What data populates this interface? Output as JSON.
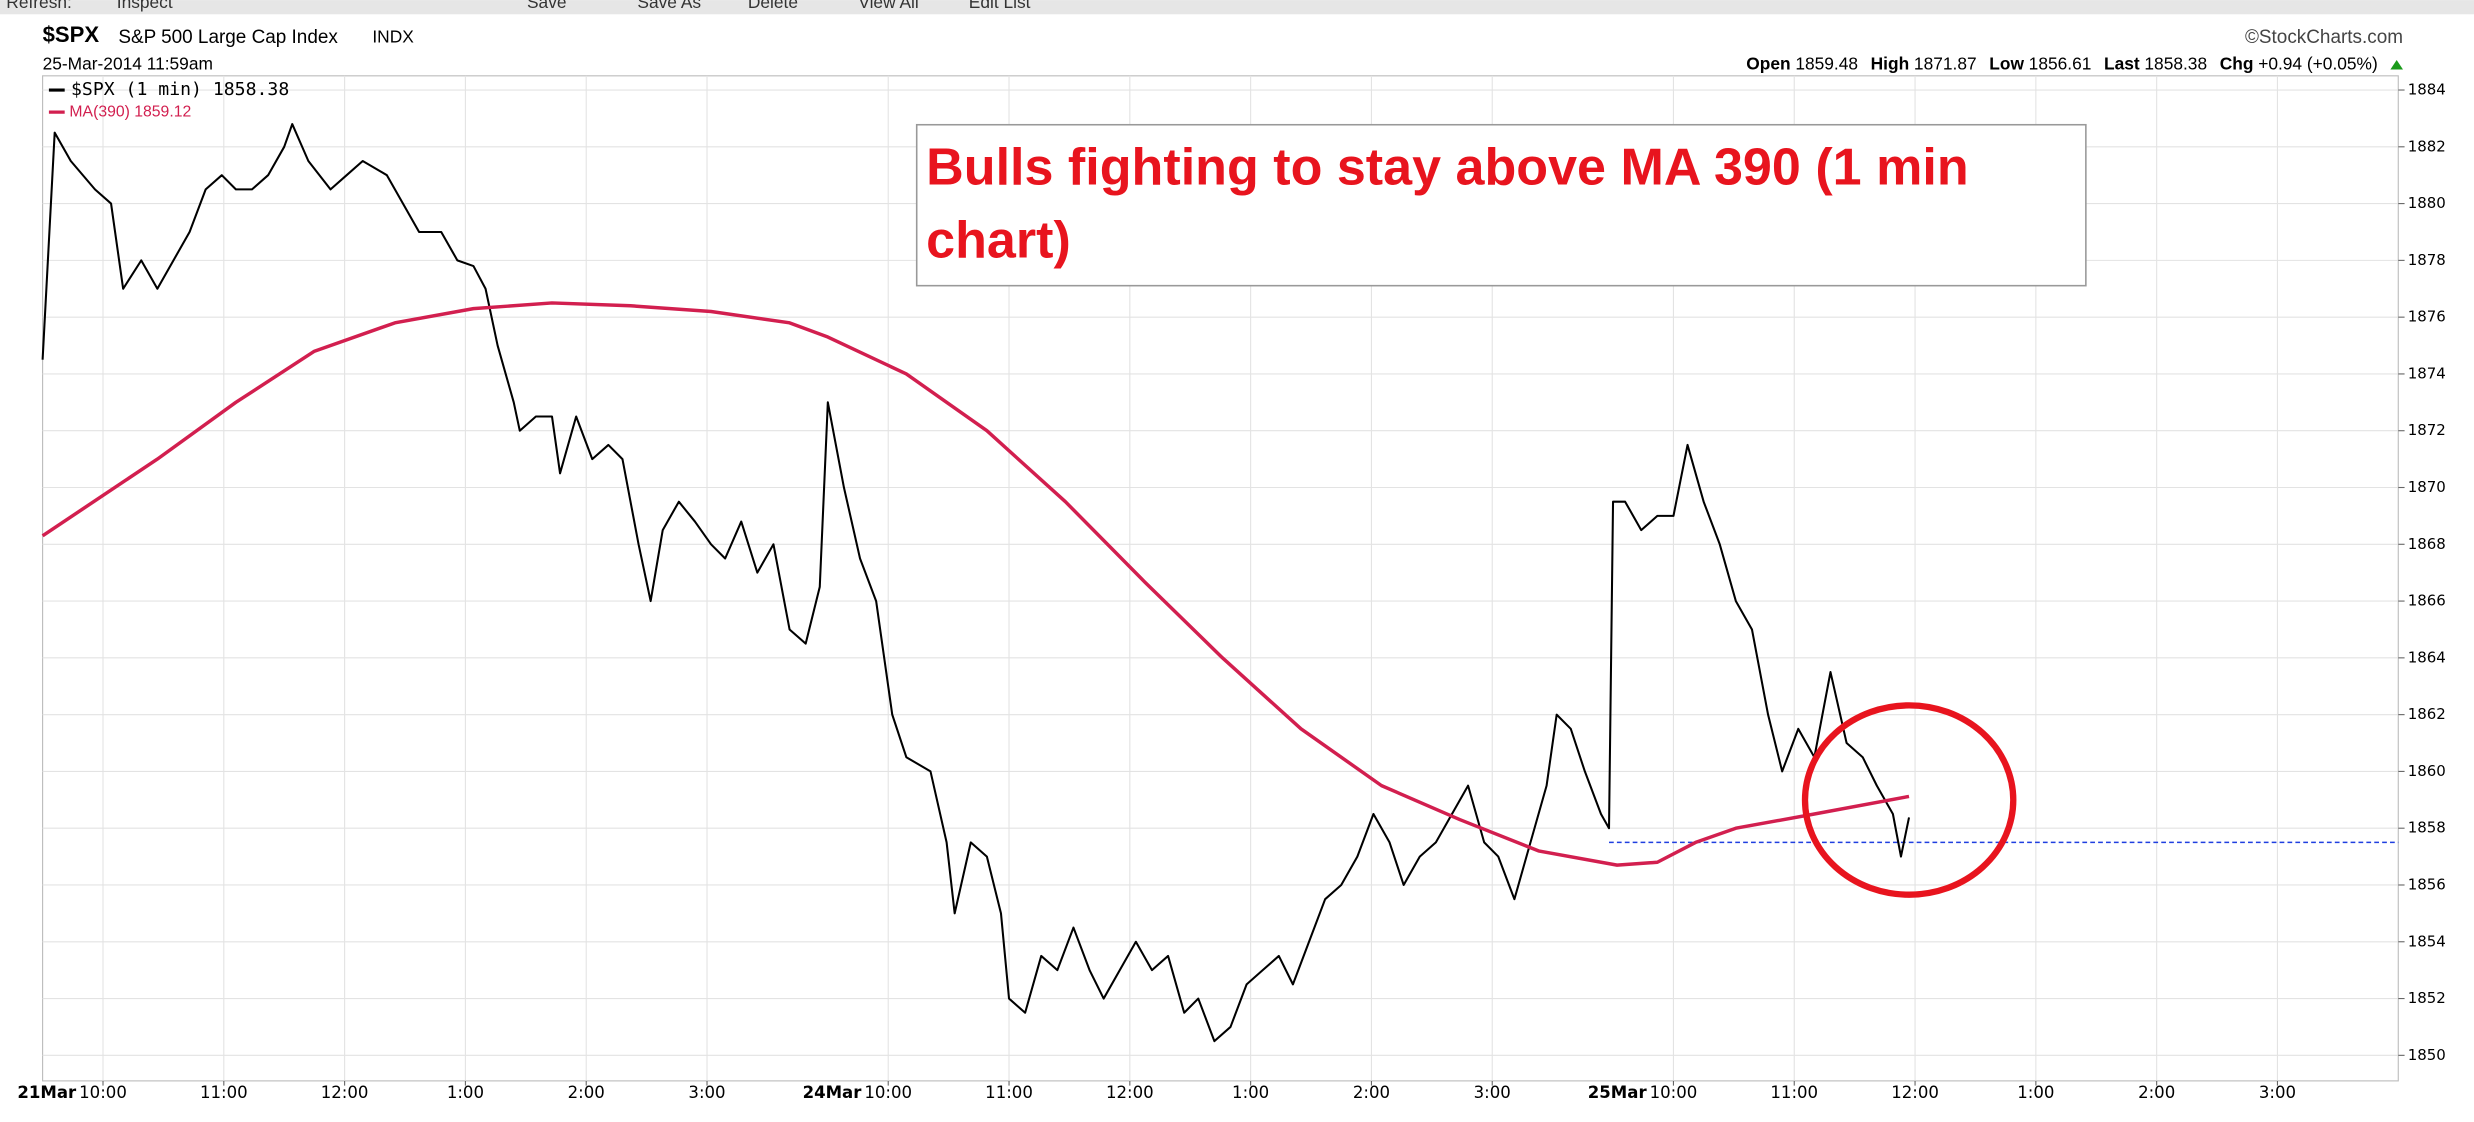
{
  "toolbar": [
    "Refresh:",
    "Inspect",
    "Save",
    "Save As",
    "Delete",
    "View All",
    "Edit List"
  ],
  "header": {
    "symbol": "$SPX",
    "name": "S&P 500 Large Cap Index",
    "exchange": "INDX",
    "date": "25-Mar-2014 11:59am",
    "source": "©StockCharts.com",
    "quote": [
      {
        "label": "Open",
        "value": 1859.48
      },
      {
        "label": "High",
        "value": 1871.87
      },
      {
        "label": "Low",
        "value": 1856.61
      },
      {
        "label": "Last",
        "value": 1858.38
      },
      {
        "label": "Chg",
        "value": "+0.94 (+0.05%)"
      }
    ]
  },
  "chart_data": {
    "type": "line",
    "annotation": "Bulls fighting to stay above MA 390 (1 min chart)",
    "xlim": [
      0,
      1170
    ],
    "ylim": [
      1849.1,
      1884.5
    ],
    "grid": true,
    "yticks": [
      1850,
      1852,
      1854,
      1856,
      1858,
      1860,
      1862,
      1864,
      1866,
      1868,
      1870,
      1872,
      1874,
      1876,
      1878,
      1880,
      1882,
      1884
    ],
    "xticks": [
      {
        "value": 30,
        "label": "10:00"
      },
      {
        "value": 90,
        "label": "11:00"
      },
      {
        "value": 150,
        "label": "12:00"
      },
      {
        "value": 210,
        "label": "1:00"
      },
      {
        "value": 270,
        "label": "2:00"
      },
      {
        "value": 330,
        "label": "3:00"
      },
      {
        "value": 420,
        "label": "10:00"
      },
      {
        "value": 480,
        "label": "11:00"
      },
      {
        "value": 540,
        "label": "12:00"
      },
      {
        "value": 600,
        "label": "1:00"
      },
      {
        "value": 660,
        "label": "2:00"
      },
      {
        "value": 720,
        "label": "3:00"
      },
      {
        "value": 810,
        "label": "10:00"
      },
      {
        "value": 870,
        "label": "11:00"
      },
      {
        "value": 930,
        "label": "12:00"
      },
      {
        "value": 990,
        "label": "1:00"
      },
      {
        "value": 1050,
        "label": "2:00"
      },
      {
        "value": 1110,
        "label": "3:00"
      }
    ],
    "day_labels": [
      {
        "value": 30,
        "label": "21Mar"
      },
      {
        "value": 420,
        "label": "24Mar"
      },
      {
        "value": 810,
        "label": "25Mar"
      }
    ],
    "reference_line": {
      "y": 1857.5,
      "x_start": 778,
      "color": "#1f3fe0"
    },
    "series": [
      {
        "name": "$SPX (1 min) 1858.38",
        "color": "#000000",
        "x": [
          0,
          6,
          14,
          26,
          34,
          40,
          49,
          57,
          65,
          73,
          81,
          89,
          96,
          104,
          112,
          120,
          124,
          132,
          143,
          151,
          159,
          171,
          179,
          187,
          198,
          206,
          214,
          220,
          226,
          234,
          237,
          245,
          253,
          257,
          265,
          273,
          281,
          288,
          296,
          302,
          308,
          316,
          324,
          332,
          339,
          347,
          355,
          363,
          371,
          379,
          386,
          390,
          398,
          406,
          414,
          422,
          429,
          441,
          449,
          453,
          461,
          469,
          476,
          480,
          488,
          496,
          504,
          512,
          520,
          527,
          535,
          543,
          551,
          559,
          567,
          574,
          582,
          590,
          598,
          606,
          614,
          621,
          629,
          637,
          645,
          653,
          661,
          669,
          676,
          684,
          692,
          700,
          708,
          716,
          723,
          731,
          739,
          747,
          752,
          759,
          766,
          774,
          778,
          780,
          786,
          794,
          802,
          810,
          817,
          825,
          833,
          841,
          849,
          857,
          864,
          872,
          880,
          888,
          896,
          904,
          911,
          919,
          923,
          927
        ],
        "values": [
          1874.5,
          1882.5,
          1881.5,
          1880.5,
          1880,
          1877,
          1878,
          1877,
          1878,
          1879,
          1880.5,
          1881,
          1880.5,
          1880.5,
          1881,
          1882,
          1882.8,
          1881.5,
          1880.5,
          1881,
          1881.5,
          1881,
          1880,
          1879,
          1879,
          1878,
          1877.8,
          1877,
          1875,
          1873,
          1872,
          1872.5,
          1872.5,
          1870.5,
          1872.5,
          1871,
          1871.5,
          1871,
          1868,
          1866,
          1868.5,
          1869.5,
          1868.8,
          1868,
          1867.5,
          1868.8,
          1867,
          1868,
          1865,
          1864.5,
          1866.5,
          1873,
          1870,
          1867.5,
          1866,
          1862,
          1860.5,
          1860,
          1857.5,
          1855,
          1857.5,
          1857,
          1855,
          1852,
          1851.5,
          1853.5,
          1853,
          1854.5,
          1853,
          1852,
          1853,
          1854,
          1853,
          1853.5,
          1851.5,
          1852,
          1850.5,
          1851,
          1852.5,
          1853,
          1853.5,
          1852.5,
          1854,
          1855.5,
          1856,
          1857,
          1858.5,
          1857.5,
          1856,
          1857,
          1857.5,
          1858.5,
          1859.5,
          1857.5,
          1857,
          1855.5,
          1857.5,
          1859.5,
          1862,
          1861.5,
          1860,
          1858.5,
          1858,
          1869.5,
          1869.5,
          1868.5,
          1869,
          1869,
          1871.5,
          1869.5,
          1868,
          1866,
          1865,
          1862,
          1860,
          1861.5,
          1860.5,
          1863.5,
          1861,
          1860.5,
          1859.5,
          1858.5,
          1857,
          1858.38
        ]
      },
      {
        "name": "MA(390) 1859.12",
        "color": "#d21f4f",
        "x": [
          0,
          57,
          96,
          135,
          175,
          214,
          253,
          292,
          332,
          371,
          390,
          429,
          469,
          508,
          547,
          586,
          625,
          665,
          704,
          743,
          782,
          802,
          821,
          841,
          880,
          927
        ],
        "values": [
          1868.3,
          1871,
          1873,
          1874.8,
          1875.8,
          1876.3,
          1876.5,
          1876.4,
          1876.2,
          1875.8,
          1875.3,
          1874,
          1872,
          1869.5,
          1866.7,
          1864,
          1861.5,
          1859.5,
          1858.3,
          1857.2,
          1856.7,
          1856.8,
          1857.5,
          1858,
          1858.5,
          1859.12
        ]
      }
    ]
  }
}
